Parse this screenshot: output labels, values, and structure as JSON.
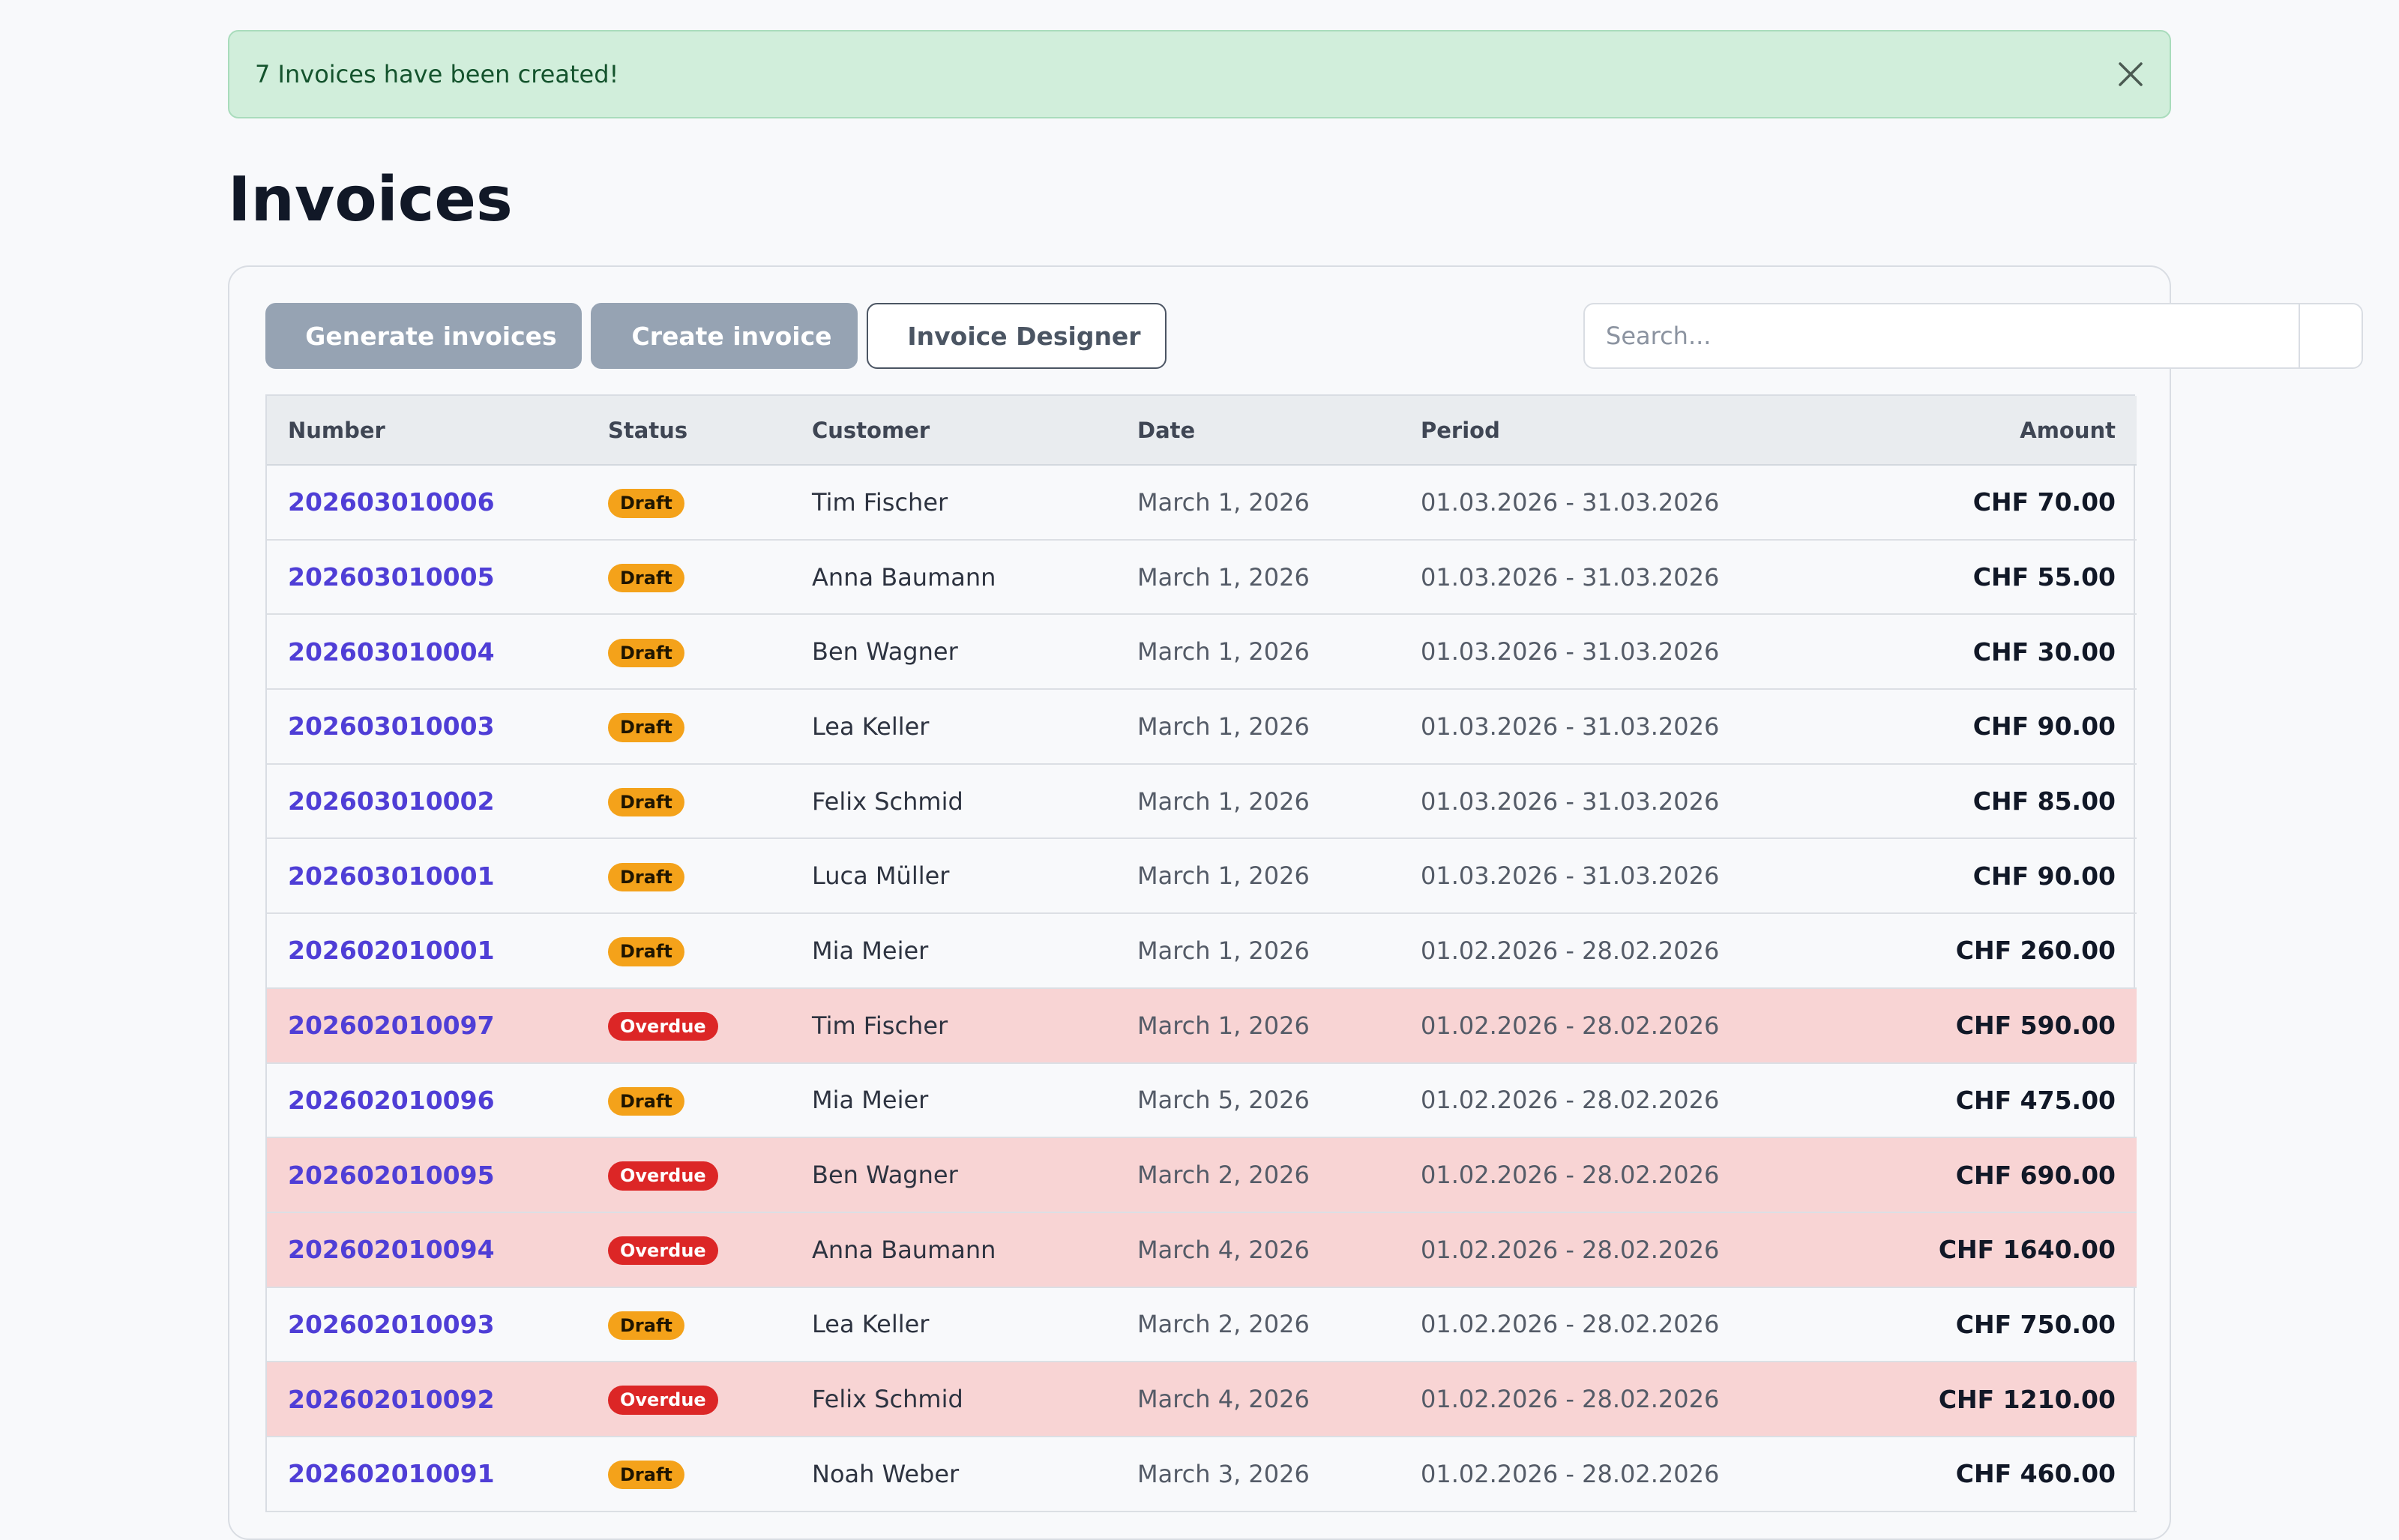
{
  "alert": {
    "message": "7 Invoices have been created!",
    "close_icon": "close-icon"
  },
  "page": {
    "title": "Invoices"
  },
  "toolbar": {
    "generate_label": "Generate invoices",
    "create_label": "Create invoice",
    "designer_label": "Invoice Designer",
    "search_placeholder": "Search..."
  },
  "table": {
    "headers": {
      "number": "Number",
      "status": "Status",
      "customer": "Customer",
      "date": "Date",
      "period": "Period",
      "amount": "Amount"
    },
    "rows": [
      {
        "number": "202603010006",
        "status": "Draft",
        "customer": "Tim Fischer",
        "date": "March 1, 2026",
        "period": "01.03.2026 - 31.03.2026",
        "amount": "CHF 70.00"
      },
      {
        "number": "202603010005",
        "status": "Draft",
        "customer": "Anna Baumann",
        "date": "March 1, 2026",
        "period": "01.03.2026 - 31.03.2026",
        "amount": "CHF 55.00"
      },
      {
        "number": "202603010004",
        "status": "Draft",
        "customer": "Ben Wagner",
        "date": "March 1, 2026",
        "period": "01.03.2026 - 31.03.2026",
        "amount": "CHF 30.00"
      },
      {
        "number": "202603010003",
        "status": "Draft",
        "customer": "Lea Keller",
        "date": "March 1, 2026",
        "period": "01.03.2026 - 31.03.2026",
        "amount": "CHF 90.00"
      },
      {
        "number": "202603010002",
        "status": "Draft",
        "customer": "Felix Schmid",
        "date": "March 1, 2026",
        "period": "01.03.2026 - 31.03.2026",
        "amount": "CHF 85.00"
      },
      {
        "number": "202603010001",
        "status": "Draft",
        "customer": "Luca Müller",
        "date": "March 1, 2026",
        "period": "01.03.2026 - 31.03.2026",
        "amount": "CHF 90.00"
      },
      {
        "number": "202602010001",
        "status": "Draft",
        "customer": "Mia Meier",
        "date": "March 1, 2026",
        "period": "01.02.2026 - 28.02.2026",
        "amount": "CHF 260.00"
      },
      {
        "number": "202602010097",
        "status": "Overdue",
        "customer": "Tim Fischer",
        "date": "March 1, 2026",
        "period": "01.02.2026 - 28.02.2026",
        "amount": "CHF 590.00"
      },
      {
        "number": "202602010096",
        "status": "Draft",
        "customer": "Mia Meier",
        "date": "March 5, 2026",
        "period": "01.02.2026 - 28.02.2026",
        "amount": "CHF 475.00"
      },
      {
        "number": "202602010095",
        "status": "Overdue",
        "customer": "Ben Wagner",
        "date": "March 2, 2026",
        "period": "01.02.2026 - 28.02.2026",
        "amount": "CHF 690.00"
      },
      {
        "number": "202602010094",
        "status": "Overdue",
        "customer": "Anna Baumann",
        "date": "March 4, 2026",
        "period": "01.02.2026 - 28.02.2026",
        "amount": "CHF 1640.00"
      },
      {
        "number": "202602010093",
        "status": "Draft",
        "customer": "Lea Keller",
        "date": "March 2, 2026",
        "period": "01.02.2026 - 28.02.2026",
        "amount": "CHF 750.00"
      },
      {
        "number": "202602010092",
        "status": "Overdue",
        "customer": "Felix Schmid",
        "date": "March 4, 2026",
        "period": "01.02.2026 - 28.02.2026",
        "amount": "CHF 1210.00"
      },
      {
        "number": "202602010091",
        "status": "Draft",
        "customer": "Noah Weber",
        "date": "March 3, 2026",
        "period": "01.02.2026 - 28.02.2026",
        "amount": "CHF 460.00"
      }
    ]
  },
  "colors": {
    "link": "#4f3ed6",
    "draft_badge": "#f4a21a",
    "overdue_badge": "#dc2626",
    "overdue_row": "#f8d4d4",
    "alert_bg": "#d1eedb"
  }
}
